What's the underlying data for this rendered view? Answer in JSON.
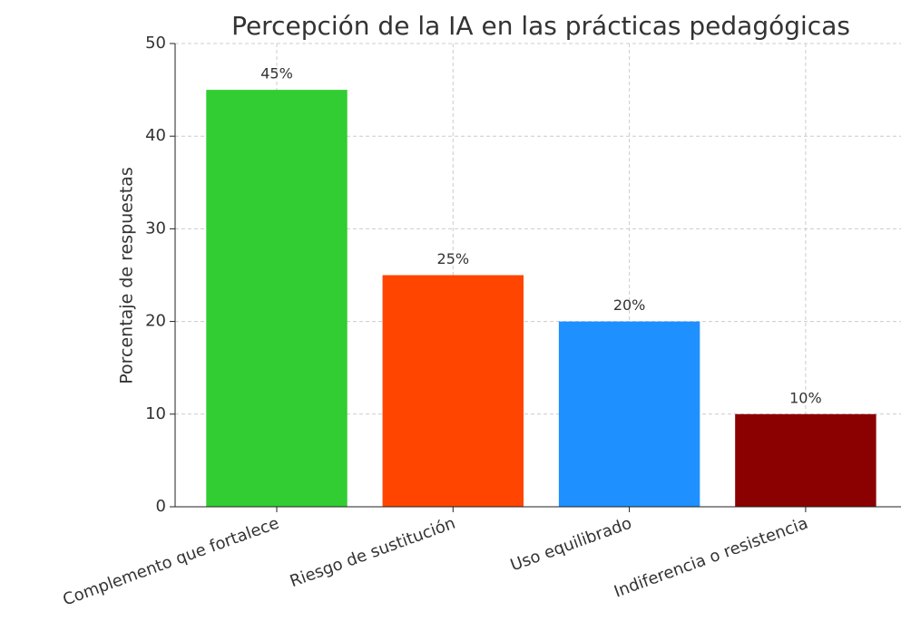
{
  "chart_data": {
    "type": "bar",
    "title": "Percepción de la IA en las prácticas pedagógicas",
    "ylabel": "Porcentaje de respuestas",
    "categories": [
      "Complemento que fortalece",
      "Riesgo de sustitución",
      "Uso equilibrado",
      "Indiferencia o resistencia"
    ],
    "values": [
      45,
      25,
      20,
      10
    ],
    "value_labels": [
      "45%",
      "25%",
      "20%",
      "10%"
    ],
    "colors": [
      "#32cd32",
      "#ff4500",
      "#1e90ff",
      "#8b0000"
    ],
    "ylim": [
      0,
      50
    ],
    "yticks": [
      0,
      10,
      20,
      30,
      40,
      50
    ],
    "grid": true
  }
}
